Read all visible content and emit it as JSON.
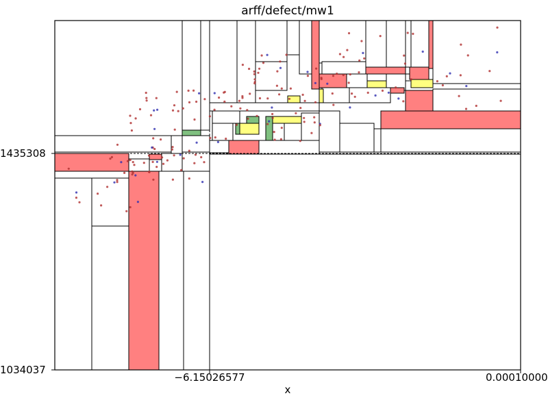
{
  "chart_data": {
    "type": "scatter",
    "title": "arff/defect/mw1",
    "xlabel": "x",
    "ylabel": "",
    "x_tick_labels": [
      "−6.15026577",
      "0.00010000"
    ],
    "y_tick_labels": [
      "1435308",
      "1034037"
    ],
    "colors": {
      "red_region": "#ff8080",
      "green_region": "#80c080",
      "yellow_region": "#ffff80",
      "outline": "#000000",
      "point_red": "#b03030",
      "point_blue": "#3030b0"
    },
    "note": "",
    "boxes": [
      [
        0,
        0,
        0.2729,
        0.0
      ],
      [
        0.0,
        0.0,
        0.1581,
        0.6284
      ],
      [
        0.0,
        0.0,
        0.1581,
        0.3807
      ],
      [
        0.0,
        0.0,
        0.0807,
        0.0
      ],
      [
        0.0,
        0.0,
        0.0807,
        0.3807
      ],
      [
        0.0807,
        0.0,
        0.1581,
        0.4049
      ],
      [
        0.1581,
        0.0,
        0.2729,
        0.0
      ],
      [
        0.1581,
        0.0,
        0.2272,
        0.5668
      ],
      [
        0.2272,
        0.0,
        0.2729,
        0.5668
      ],
      [
        0.2729,
        0.0,
        1.0,
        0.5668
      ],
      [
        0.2729,
        0.0,
        0.3333,
        0.0
      ],
      [
        0.3333,
        0.0,
        1.0,
        0.0
      ]
    ]
  }
}
